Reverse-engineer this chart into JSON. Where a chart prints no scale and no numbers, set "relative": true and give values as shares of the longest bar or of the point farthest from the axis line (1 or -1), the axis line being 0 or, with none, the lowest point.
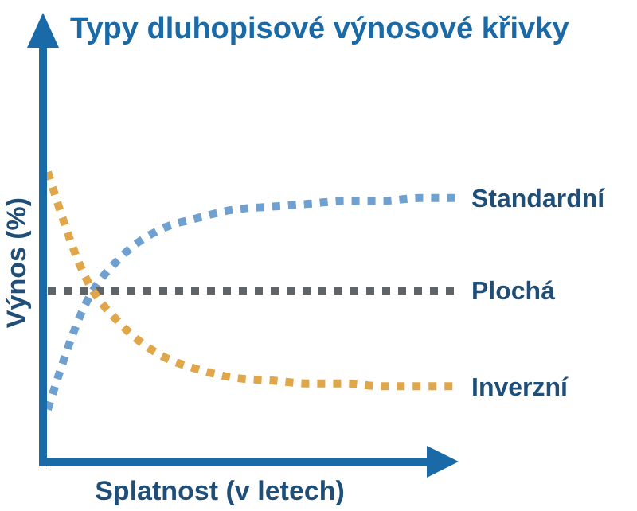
{
  "chart_data": {
    "type": "line",
    "title": "Typy dluhopisové výnosové křivky",
    "xlabel": "Splatnost (v letech)",
    "ylabel": "Výnos (%)",
    "relative": true,
    "legend": false,
    "line_style": "dotted",
    "marker": "none",
    "categories": [
      null,
      null,
      null,
      null,
      null,
      null,
      null,
      null,
      null,
      null,
      null,
      null
    ],
    "series": [
      {
        "name": "Standardní",
        "color": "#6fa0cf",
        "values": [
          0.18,
          0.54,
          0.71,
          0.8,
          0.84,
          0.87,
          0.88,
          0.89,
          0.9,
          0.9,
          0.91,
          0.91
        ]
      },
      {
        "name": "Plochá",
        "color": "#5f6468",
        "values": [
          0.59,
          0.59,
          0.59,
          0.59,
          0.59,
          0.59,
          0.59,
          0.59,
          0.59,
          0.59,
          0.59,
          0.59
        ]
      },
      {
        "name": "Inverzní",
        "color": "#e0a64a",
        "values": [
          1,
          0.64,
          0.47,
          0.37,
          0.32,
          0.29,
          0.28,
          0.27,
          0.27,
          0.26,
          0.26,
          0.26
        ]
      }
    ]
  }
}
